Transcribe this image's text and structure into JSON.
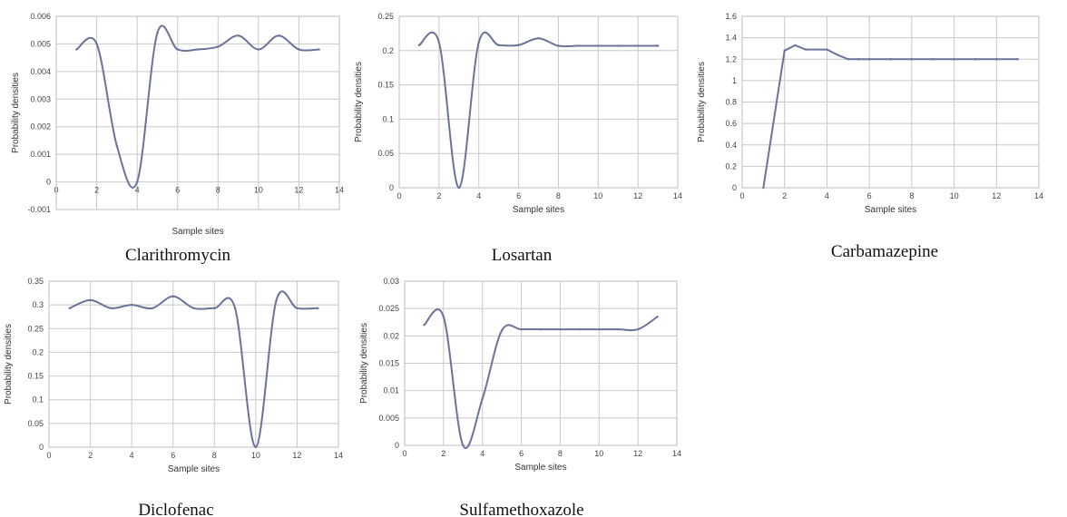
{
  "colors": {
    "series": "#6b7398",
    "grid": "#c8c8c8"
  },
  "chart_data": [
    {
      "type": "line",
      "caption": "Clarithromycin",
      "xlabel": "Sample sites",
      "ylabel": "Probability densities",
      "xlim": [
        0,
        14
      ],
      "ylim": [
        -0.001,
        0.006
      ],
      "xticks": [
        "0",
        "2",
        "4",
        "6",
        "8",
        "10",
        "12",
        "14"
      ],
      "yticks": [
        "-0.001",
        "0",
        "0.001",
        "0.002",
        "0.003",
        "0.004",
        "0.005",
        "0.006"
      ],
      "smooth": true,
      "x": [
        1,
        2,
        3,
        4,
        5,
        6,
        7,
        8,
        9,
        10,
        11,
        12,
        13
      ],
      "values": [
        0.0048,
        0.005,
        0.0013,
        0.0,
        0.0054,
        0.0048,
        0.0048,
        0.0049,
        0.0053,
        0.0048,
        0.0053,
        0.0048,
        0.0048
      ]
    },
    {
      "type": "line",
      "caption": "Losartan",
      "xlabel": "Sample sites",
      "ylabel": "Probability densities",
      "xlim": [
        0,
        14
      ],
      "ylim": [
        0,
        0.25
      ],
      "xticks": [
        "0",
        "2",
        "4",
        "6",
        "8",
        "10",
        "12",
        "14"
      ],
      "yticks": [
        "0",
        "0.05",
        "0.1",
        "0.15",
        "0.2",
        "0.25"
      ],
      "smooth": true,
      "x": [
        1,
        2,
        3,
        4,
        5,
        6,
        7,
        8,
        9,
        10,
        11,
        12,
        13
      ],
      "values": [
        0.208,
        0.212,
        0.0,
        0.212,
        0.208,
        0.208,
        0.218,
        0.207,
        0.207,
        0.207,
        0.207,
        0.207,
        0.207
      ]
    },
    {
      "type": "line",
      "caption": "Carbamazepine",
      "xlabel": "Sample sites",
      "ylabel": "Probability densities",
      "xlim": [
        0,
        14
      ],
      "ylim": [
        0,
        1.6
      ],
      "xticks": [
        "0",
        "2",
        "4",
        "6",
        "8",
        "10",
        "12",
        "14"
      ],
      "yticks": [
        "0",
        "0.2",
        "0.4",
        "0.6",
        "0.8",
        "1",
        "1.2",
        "1.4",
        "1.6"
      ],
      "smooth": false,
      "x": [
        1,
        2,
        2.5,
        3,
        4,
        4.5,
        5,
        5.5,
        6,
        7,
        8,
        9,
        10,
        11,
        12,
        13
      ],
      "values": [
        0.0,
        1.28,
        1.33,
        1.29,
        1.29,
        1.24,
        1.2,
        1.2,
        1.2,
        1.2,
        1.2,
        1.2,
        1.2,
        1.2,
        1.2,
        1.2
      ]
    },
    {
      "type": "line",
      "caption": "Diclofenac",
      "xlabel": "Sample sites",
      "ylabel": "Probability densities",
      "xlim": [
        0,
        14
      ],
      "ylim": [
        0,
        0.35
      ],
      "xticks": [
        "0",
        "2",
        "4",
        "6",
        "8",
        "10",
        "12",
        "14"
      ],
      "yticks": [
        "0",
        "0.05",
        "0.1",
        "0.15",
        "0.2",
        "0.25",
        "0.3",
        "0.35"
      ],
      "smooth": true,
      "x": [
        1,
        2,
        3,
        4,
        5,
        6,
        7,
        8,
        9,
        10,
        11,
        12,
        13
      ],
      "values": [
        0.293,
        0.31,
        0.293,
        0.3,
        0.293,
        0.318,
        0.293,
        0.293,
        0.293,
        0.0,
        0.31,
        0.293,
        0.293
      ]
    },
    {
      "type": "line",
      "caption": "Sulfamethoxazole",
      "xlabel": "Sample sites",
      "ylabel": "Probability densities",
      "xlim": [
        0,
        14
      ],
      "ylim": [
        0,
        0.03
      ],
      "xticks": [
        "0",
        "2",
        "4",
        "6",
        "8",
        "10",
        "12",
        "14"
      ],
      "yticks": [
        "0",
        "0.005",
        "0.01",
        "0.015",
        "0.02",
        "0.025",
        "0.03"
      ],
      "smooth": true,
      "x": [
        1,
        2,
        3,
        4,
        5,
        6,
        7,
        8,
        9,
        10,
        11,
        12,
        13
      ],
      "values": [
        0.022,
        0.0235,
        0.0,
        0.0085,
        0.021,
        0.0212,
        0.0212,
        0.0212,
        0.0212,
        0.0212,
        0.0212,
        0.0212,
        0.0235
      ]
    }
  ]
}
